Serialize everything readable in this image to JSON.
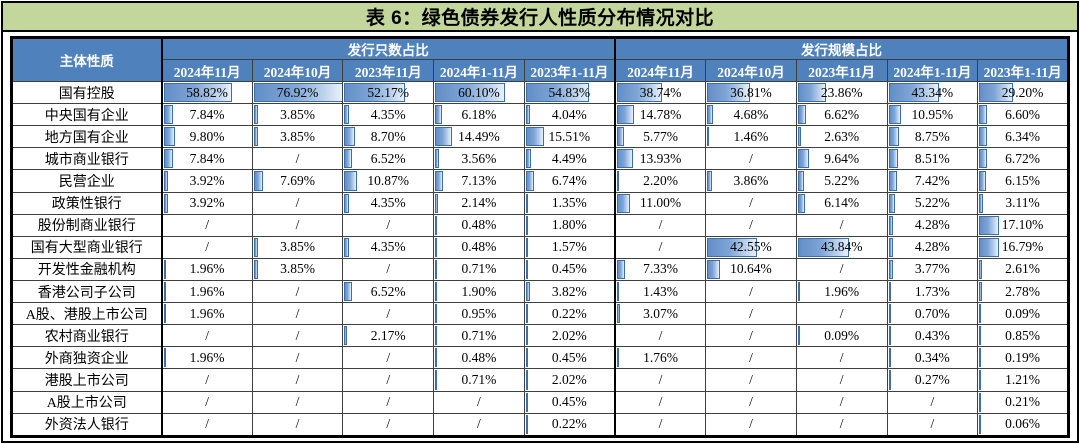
{
  "title": "表 6：绿色债券发行人性质分布情况对比",
  "colors": {
    "title_bg": "#C3D69B",
    "header_bg": "#4F81BD",
    "header_text": "#FFFFFF",
    "bar_fill": "#638EC6",
    "bar_border": "#3C6EAC"
  },
  "bars": {
    "max_value": 76.92
  },
  "table": {
    "corner_header": "主体性质",
    "missing_marker": "/",
    "groups": [
      {
        "label": "发行只数占比",
        "columns": [
          "2024年11月",
          "2024年10月",
          "2023年11月",
          "2024年1-11月",
          "2023年1-11月"
        ]
      },
      {
        "label": "发行规模占比",
        "columns": [
          "2024年11月",
          "2024年10月",
          "2023年11月",
          "2024年1-11月",
          "2023年1-11月"
        ]
      }
    ],
    "rows": [
      {
        "label": "国有控股",
        "count": [
          "58.82%",
          "76.92%",
          "52.17%",
          "60.10%",
          "54.83%"
        ],
        "scale": [
          "38.74%",
          "36.81%",
          "23.86%",
          "43.34%",
          "29.20%"
        ]
      },
      {
        "label": "中央国有企业",
        "count": [
          "7.84%",
          "3.85%",
          "4.35%",
          "6.18%",
          "4.04%"
        ],
        "scale": [
          "14.78%",
          "4.68%",
          "6.62%",
          "10.95%",
          "6.60%"
        ]
      },
      {
        "label": "地方国有企业",
        "count": [
          "9.80%",
          "3.85%",
          "8.70%",
          "14.49%",
          "15.51%"
        ],
        "scale": [
          "5.77%",
          "1.46%",
          "2.63%",
          "8.75%",
          "6.34%"
        ]
      },
      {
        "label": "城市商业银行",
        "count": [
          "7.84%",
          "/",
          "6.52%",
          "3.56%",
          "4.49%"
        ],
        "scale": [
          "13.93%",
          "/",
          "9.64%",
          "8.51%",
          "6.72%"
        ]
      },
      {
        "label": "民营企业",
        "count": [
          "3.92%",
          "7.69%",
          "10.87%",
          "7.13%",
          "6.74%"
        ],
        "scale": [
          "2.20%",
          "3.86%",
          "5.22%",
          "7.42%",
          "6.15%"
        ]
      },
      {
        "label": "政策性银行",
        "count": [
          "3.92%",
          "/",
          "4.35%",
          "2.14%",
          "1.35%"
        ],
        "scale": [
          "11.00%",
          "/",
          "6.14%",
          "5.22%",
          "3.11%"
        ]
      },
      {
        "label": "股份制商业银行",
        "count": [
          "/",
          "/",
          "/",
          "0.48%",
          "1.80%"
        ],
        "scale": [
          "/",
          "/",
          "/",
          "4.28%",
          "17.10%"
        ]
      },
      {
        "label": "国有大型商业银行",
        "count": [
          "/",
          "3.85%",
          "4.35%",
          "0.48%",
          "1.57%"
        ],
        "scale": [
          "/",
          "42.55%",
          "43.84%",
          "4.28%",
          "16.79%"
        ]
      },
      {
        "label": "开发性金融机构",
        "count": [
          "1.96%",
          "3.85%",
          "/",
          "0.71%",
          "0.45%"
        ],
        "scale": [
          "7.33%",
          "10.64%",
          "/",
          "3.77%",
          "2.61%"
        ]
      },
      {
        "label": "香港公司子公司",
        "count": [
          "1.96%",
          "/",
          "6.52%",
          "1.90%",
          "3.82%"
        ],
        "scale": [
          "1.43%",
          "/",
          "1.96%",
          "1.73%",
          "2.78%"
        ]
      },
      {
        "label": "A股、港股上市公司",
        "count": [
          "1.96%",
          "/",
          "/",
          "0.95%",
          "0.22%"
        ],
        "scale": [
          "3.07%",
          "/",
          "/",
          "0.70%",
          "0.09%"
        ]
      },
      {
        "label": "农村商业银行",
        "count": [
          "/",
          "/",
          "2.17%",
          "0.71%",
          "2.02%"
        ],
        "scale": [
          "/",
          "/",
          "0.09%",
          "0.43%",
          "0.85%"
        ]
      },
      {
        "label": "外商独资企业",
        "count": [
          "1.96%",
          "/",
          "/",
          "0.48%",
          "0.45%"
        ],
        "scale": [
          "1.76%",
          "/",
          "/",
          "0.34%",
          "0.19%"
        ]
      },
      {
        "label": "港股上市公司",
        "count": [
          "/",
          "/",
          "/",
          "0.71%",
          "2.02%"
        ],
        "scale": [
          "/",
          "/",
          "/",
          "0.27%",
          "1.21%"
        ]
      },
      {
        "label": "A股上市公司",
        "count": [
          "/",
          "/",
          "/",
          "/",
          "0.45%"
        ],
        "scale": [
          "/",
          "/",
          "/",
          "/",
          "0.21%"
        ]
      },
      {
        "label": "外资法人银行",
        "count": [
          "/",
          "/",
          "/",
          "/",
          "0.22%"
        ],
        "scale": [
          "/",
          "/",
          "/",
          "/",
          "0.06%"
        ]
      }
    ]
  }
}
